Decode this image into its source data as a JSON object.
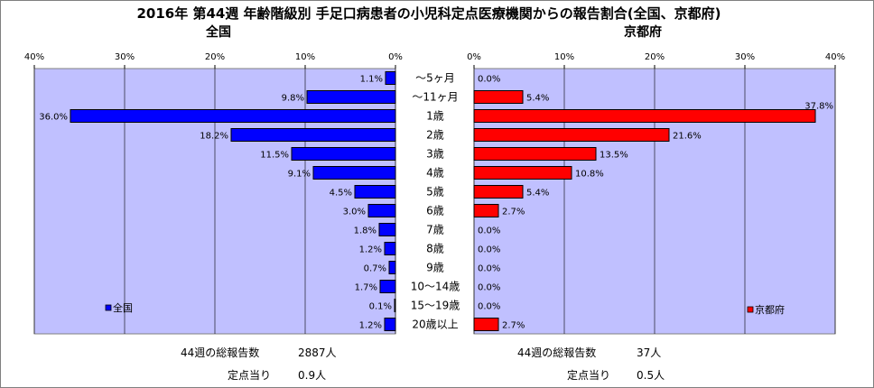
{
  "title": "2016年 第44週 年齢階級別 手足口病患者の小児科定点医療機関からの報告割合(全国、京都府)",
  "chart_data": [
    {
      "type": "bar",
      "orientation": "horizontal",
      "axis_direction": "reversed",
      "title": "全国",
      "categories": [
        "～5ヶ月",
        "～11ヶ月",
        "1歳",
        "2歳",
        "3歳",
        "4歳",
        "5歳",
        "6歳",
        "7歳",
        "8歳",
        "9歳",
        "10～14歳",
        "15～19歳",
        "20歳以上"
      ],
      "series": [
        {
          "name": "全国",
          "values": [
            1.1,
            9.8,
            36.0,
            18.2,
            11.5,
            9.1,
            4.5,
            3.0,
            1.8,
            1.2,
            0.7,
            1.7,
            0.1,
            1.2
          ],
          "value_labels": [
            "1.1%",
            "9.8%",
            "36.0%",
            "18.2%",
            "11.5%",
            "9.1%",
            "4.5%",
            "3.0%",
            "1.8%",
            "1.2%",
            "0.7%",
            "1.7%",
            "0.1%",
            "1.2%"
          ],
          "color": "#0000ff"
        }
      ],
      "xlim": [
        0,
        40
      ],
      "ticks": [
        "40%",
        "30%",
        "20%",
        "10%",
        "0%"
      ],
      "legend": "bottom-left",
      "grid": true,
      "plot_background": "#c0c0ff"
    },
    {
      "type": "bar",
      "orientation": "horizontal",
      "title": "京都府",
      "categories": [
        "～5ヶ月",
        "～11ヶ月",
        "1歳",
        "2歳",
        "3歳",
        "4歳",
        "5歳",
        "6歳",
        "7歳",
        "8歳",
        "9歳",
        "10～14歳",
        "15～19歳",
        "20歳以上"
      ],
      "series": [
        {
          "name": "京都府",
          "values": [
            0.0,
            5.4,
            37.8,
            21.6,
            13.5,
            10.8,
            5.4,
            2.7,
            0.0,
            0.0,
            0.0,
            0.0,
            0.0,
            2.7
          ],
          "value_labels": [
            "0.0%",
            "5.4%",
            "37.8%",
            "21.6%",
            "13.5%",
            "10.8%",
            "5.4%",
            "2.7%",
            "0.0%",
            "0.0%",
            "0.0%",
            "0.0%",
            "0.0%",
            "2.7%"
          ],
          "color": "#ff0000"
        }
      ],
      "xlim": [
        0,
        40
      ],
      "ticks": [
        "0%",
        "10%",
        "20%",
        "30%",
        "40%"
      ],
      "legend": "bottom-right",
      "grid": true,
      "plot_background": "#c0c0ff"
    }
  ],
  "summary": {
    "national": {
      "total_label": "44週の総報告数",
      "total_value": "2887人",
      "per_site_label": "定点当り",
      "per_site_value": "0.9人"
    },
    "kyoto": {
      "total_label": "44週の総報告数",
      "total_value": "37人",
      "per_site_label": "定点当り",
      "per_site_value": "0.5人"
    }
  }
}
